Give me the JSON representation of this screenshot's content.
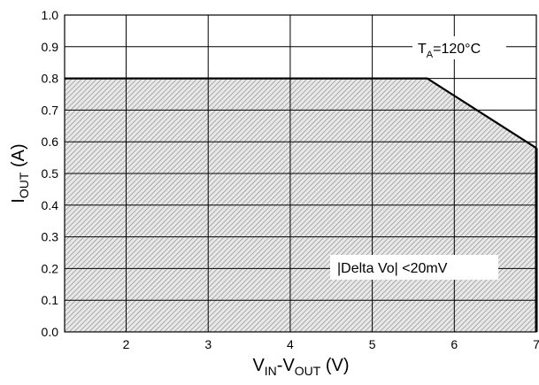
{
  "chart_data": {
    "type": "area",
    "xlim": [
      1.25,
      7
    ],
    "ylim": [
      0,
      1.0
    ],
    "grid": true,
    "x_ticks": [
      2,
      3,
      4,
      5,
      6,
      7
    ],
    "x_tick_labels": [
      "2",
      "3",
      "4",
      "5",
      "6",
      "7"
    ],
    "y_ticks": [
      0,
      0.1,
      0.2,
      0.3,
      0.4,
      0.5,
      0.6,
      0.7,
      0.8,
      0.9,
      1.0
    ],
    "y_tick_labels": [
      "0.0",
      "0.1",
      "0.2",
      "0.3",
      "0.4",
      "0.5",
      "0.6",
      "0.7",
      "0.8",
      "0.9",
      "1.0"
    ],
    "xlabel": {
      "v1": "V",
      "sub1": "IN",
      "mid": "-V",
      "sub2": "OUT",
      "tail": " (V)"
    },
    "ylabel": {
      "main": "I",
      "sub": "OUT",
      "tail": " (A)"
    },
    "boundary": {
      "x": [
        1.25,
        5.67,
        7
      ],
      "y": [
        0.8,
        0.8,
        0.58
      ]
    },
    "annotations": {
      "temperature": {
        "main": "T",
        "sub": "A",
        "tail": "=120°C"
      },
      "condition": "|Delta Vo| <20mV"
    },
    "colors": {
      "fill_hatch": "#9a9a9a",
      "fill_bg": "#e6e6e6",
      "boundary": "#000000",
      "grid": "#000000"
    }
  }
}
